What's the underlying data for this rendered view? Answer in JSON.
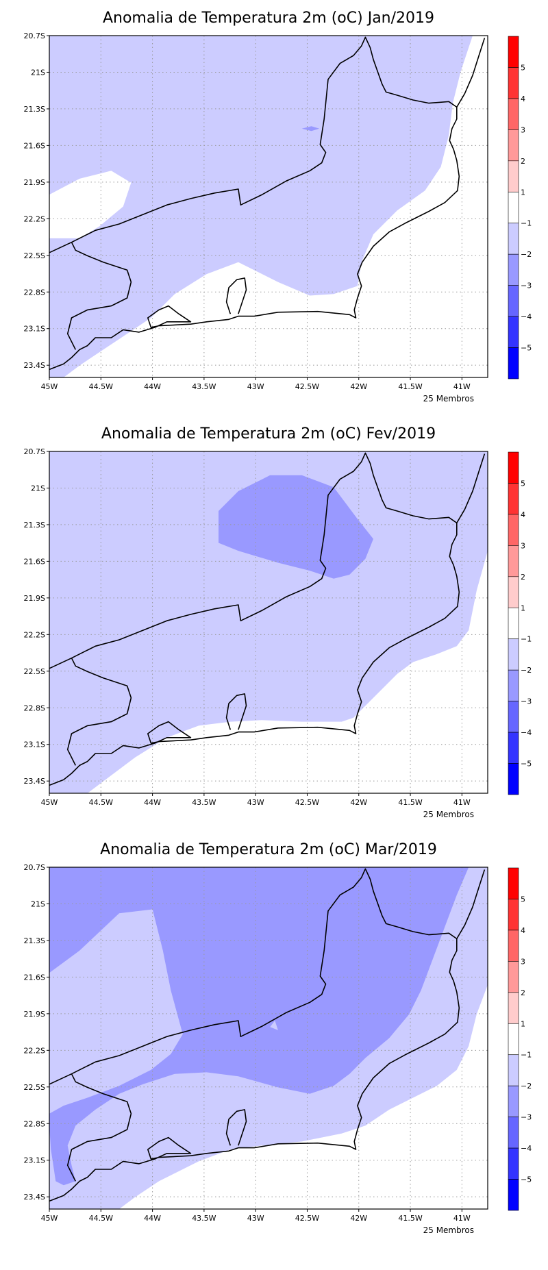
{
  "chart_data": [
    {
      "type": "heatmap",
      "title": "Anomalia de Temperatura 2m (oC) Jan/2019",
      "footer": "25 Membros",
      "month": "Jan/2019"
    },
    {
      "type": "heatmap",
      "title": "Anomalia de Temperatura 2m (oC) Fev/2019",
      "footer": "25 Membros",
      "month": "Fev/2019"
    },
    {
      "type": "heatmap",
      "title": "Anomalia de Temperatura 2m (oC) Mar/2019",
      "footer": "25 Membros",
      "month": "Mar/2019"
    }
  ],
  "axes": {
    "x_ticks": [
      "45W",
      "44.5W",
      "44W",
      "43.5W",
      "43W",
      "42.5W",
      "42W",
      "41.5W",
      "41W"
    ],
    "x_values": [
      -45,
      -44.5,
      -44,
      -43.5,
      -43,
      -42.5,
      -42,
      -41.5,
      -41
    ],
    "y_ticks": [
      "20.7S",
      "21S",
      "21.3S",
      "21.6S",
      "21.9S",
      "22.2S",
      "22.5S",
      "22.8S",
      "23.1S",
      "23.4S"
    ],
    "y_values": [
      -20.7,
      -21,
      -21.3,
      -21.6,
      -21.9,
      -22.2,
      -22.5,
      -22.8,
      -23.1,
      -23.4
    ],
    "xlim": [
      -45,
      -40.75
    ],
    "ylim": [
      -23.5,
      -20.7
    ],
    "grid": true
  },
  "colorbar": {
    "labels": [
      "5",
      "4",
      "3",
      "2",
      "1",
      "−1",
      "−2",
      "−3",
      "−4",
      "−5"
    ],
    "colors": [
      "#ff0000",
      "#ff3333",
      "#ff6666",
      "#ff9999",
      "#ffcccc",
      "#ffffff",
      "#ccccff",
      "#9999ff",
      "#6666ff",
      "#3333ff",
      "#0000ff"
    ]
  }
}
